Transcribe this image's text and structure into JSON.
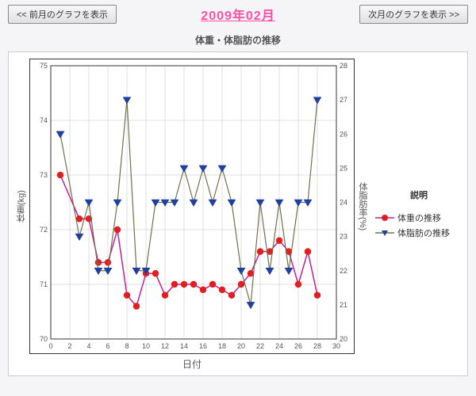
{
  "nav": {
    "prev_label": "<< 前月のグラフを表示",
    "next_label": "次月のグラフを表示 >>"
  },
  "title_month": "2009年02月",
  "chart": {
    "title": "体重・体脂肪の推移",
    "xlabel": "日付",
    "ylabel_left": "体重(kg)",
    "ylabel_right": "体脂肪率(%)",
    "xlim": [
      0,
      30
    ],
    "ylim_left": [
      70,
      75
    ],
    "ylim_right": [
      20,
      28
    ],
    "xtick_step": 2,
    "background_color": "#ffffff",
    "grid_color": "#bfbfbf",
    "series": [
      {
        "name": "体重の推移",
        "axis": "left",
        "color_line": "#c02090",
        "color_marker": "#e02020",
        "marker": "circle",
        "line_width": 1.5,
        "marker_size": 5,
        "data": [
          [
            1,
            73.0
          ],
          [
            3,
            72.2
          ],
          [
            4,
            72.2
          ],
          [
            5,
            71.4
          ],
          [
            6,
            71.4
          ],
          [
            7,
            72.0
          ],
          [
            8,
            70.8
          ],
          [
            9,
            70.6
          ],
          [
            10,
            71.2
          ],
          [
            11,
            71.2
          ],
          [
            12,
            70.8
          ],
          [
            13,
            71.0
          ],
          [
            14,
            71.0
          ],
          [
            15,
            71.0
          ],
          [
            16,
            70.9
          ],
          [
            17,
            71.0
          ],
          [
            18,
            70.9
          ],
          [
            19,
            70.8
          ],
          [
            20,
            71.0
          ],
          [
            21,
            71.2
          ],
          [
            22,
            71.6
          ],
          [
            23,
            71.6
          ],
          [
            24,
            71.8
          ],
          [
            25,
            71.6
          ],
          [
            26,
            71.0
          ],
          [
            27,
            71.6
          ],
          [
            28,
            70.8
          ]
        ]
      },
      {
        "name": "体脂肪の推移",
        "axis": "right",
        "color_line": "#707050",
        "color_marker": "#2040a0",
        "marker": "triangle-down",
        "line_width": 1.2,
        "marker_size": 5,
        "data": [
          [
            1,
            26.0
          ],
          [
            3,
            23.0
          ],
          [
            4,
            24.0
          ],
          [
            5,
            22.0
          ],
          [
            6,
            22.0
          ],
          [
            7,
            24.0
          ],
          [
            8,
            27.0
          ],
          [
            9,
            22.0
          ],
          [
            10,
            22.0
          ],
          [
            11,
            24.0
          ],
          [
            12,
            24.0
          ],
          [
            13,
            24.0
          ],
          [
            14,
            25.0
          ],
          [
            15,
            24.0
          ],
          [
            16,
            25.0
          ],
          [
            17,
            24.0
          ],
          [
            18,
            25.0
          ],
          [
            19,
            24.0
          ],
          [
            20,
            22.0
          ],
          [
            21,
            21.0
          ],
          [
            22,
            24.0
          ],
          [
            23,
            22.0
          ],
          [
            24,
            24.0
          ],
          [
            25,
            22.0
          ],
          [
            26,
            24.0
          ],
          [
            27,
            24.0
          ],
          [
            28,
            27.0
          ]
        ]
      }
    ]
  },
  "legend": {
    "title": "説明"
  }
}
